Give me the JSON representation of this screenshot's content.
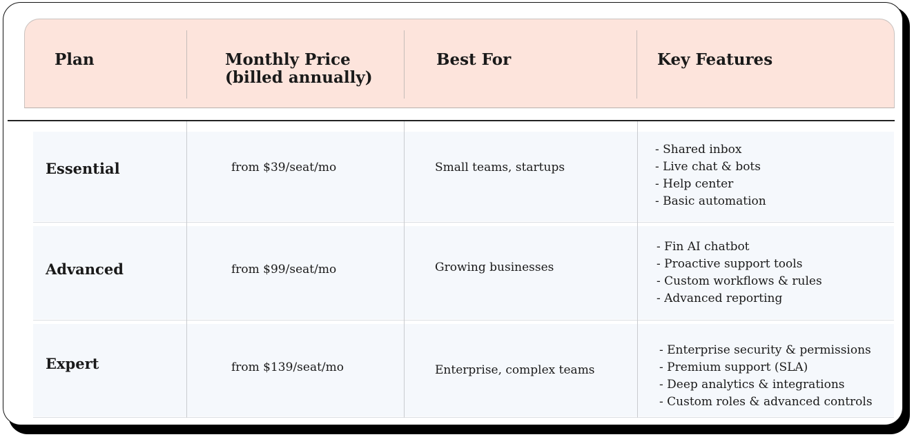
{
  "headers": {
    "plan": "Plan",
    "price_line1": "Monthly Price",
    "price_line2": "(billed annually)",
    "best_for": "Best For",
    "features": "Key Features"
  },
  "rows": [
    {
      "plan": "Essential",
      "price": "from $39/seat/mo",
      "best_for": "Small teams, startups",
      "features": [
        "- Shared inbox",
        "- Live chat & bots",
        "- Help center",
        "- Basic automation"
      ]
    },
    {
      "plan": "Advanced",
      "price": "from $99/seat/mo",
      "best_for": "Growing businesses",
      "features": [
        "- Fin AI chatbot",
        "- Proactive support tools",
        "- Custom workflows & rules",
        "- Advanced reporting"
      ]
    },
    {
      "plan": "Expert",
      "price": "from $139/seat/mo",
      "best_for": "Enterprise, complex teams",
      "features": [
        "- Enterprise security & permissions",
        "- Premium support (SLA)",
        "- Deep analytics & integrations",
        "- Custom roles & advanced controls"
      ]
    }
  ],
  "colors": {
    "header_bg": "#fde4dc",
    "row_bg": "#f5f8fc"
  }
}
